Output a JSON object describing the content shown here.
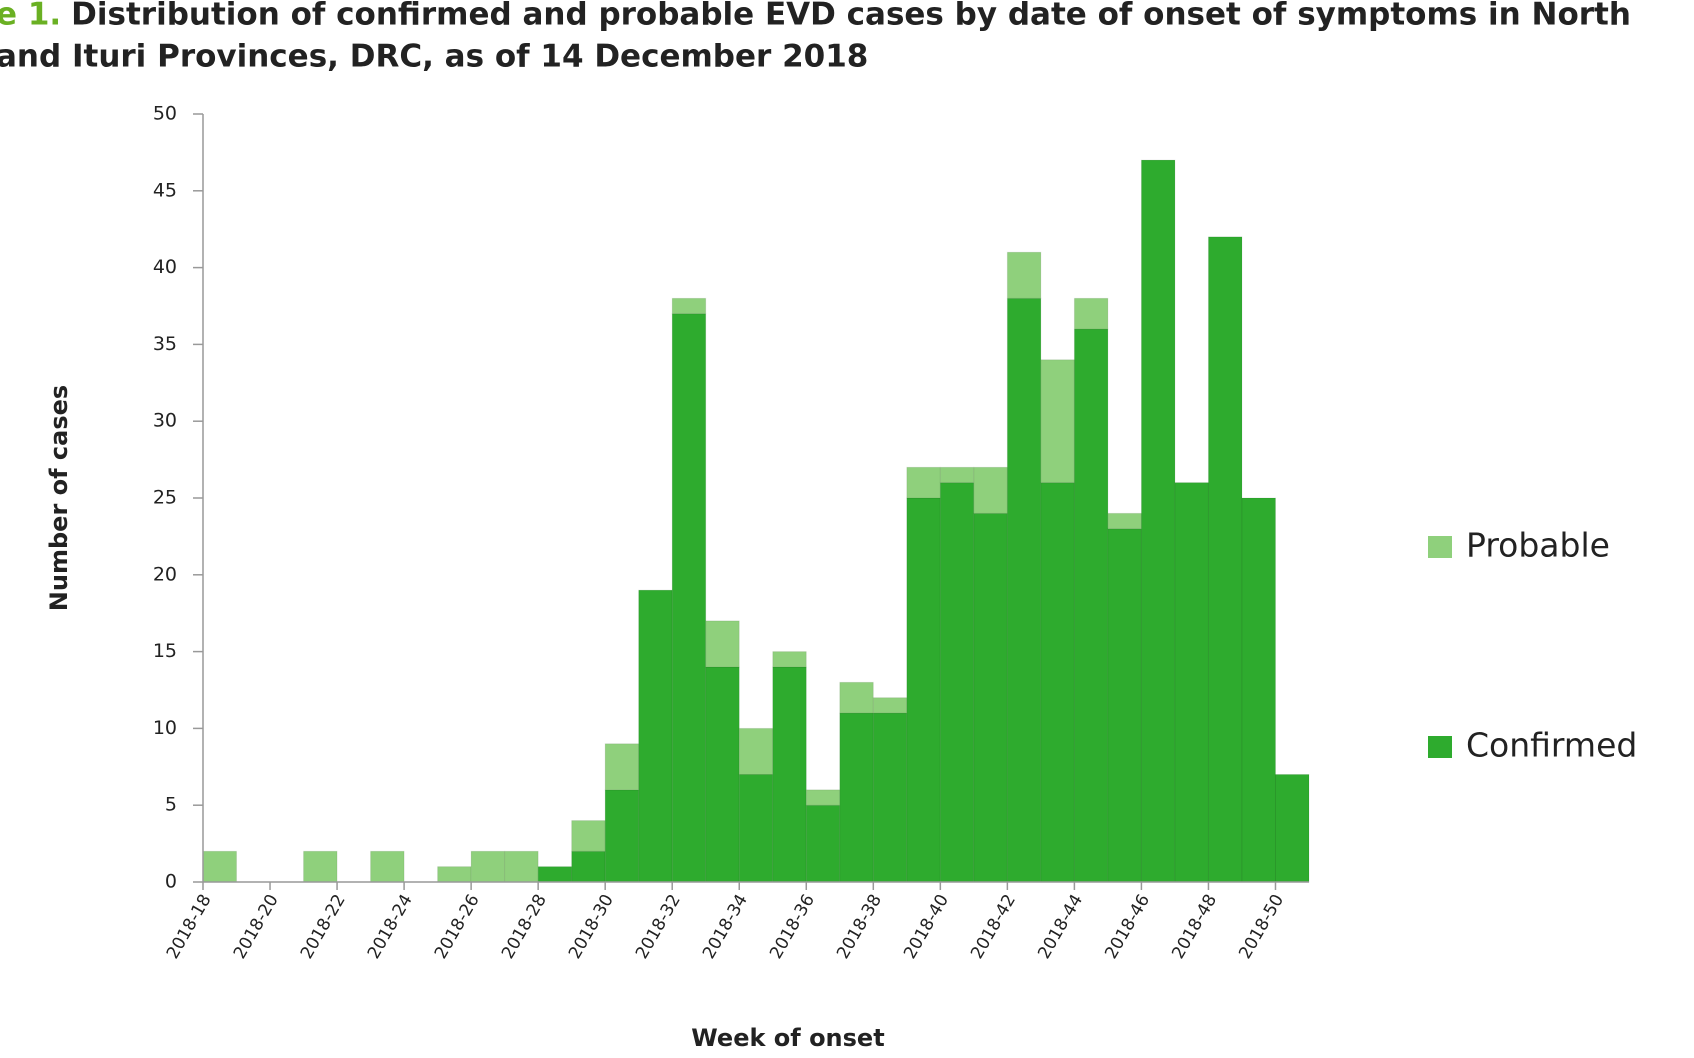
{
  "chart_data": {
    "type": "stacked_bar",
    "title_prefix": "e 1.",
    "title": [
      "Distribution of confirmed and probable EVD cases by date of onset of symptoms in North",
      "and Ituri Provinces, DRC, as of 14 December 2018"
    ],
    "x_label": "Week of onset",
    "y_label": "Number of cases",
    "categories": [
      "2018-18",
      null,
      "2018-20",
      null,
      "2018-22",
      null,
      "2018-24",
      null,
      "2018-26",
      null,
      "2018-28",
      null,
      "2018-30",
      null,
      "2018-32",
      null,
      "2018-34",
      null,
      "2018-36",
      null,
      "2018-38",
      null,
      "2018-40",
      null,
      "2018-42",
      null,
      "2018-44",
      null,
      "2018-46",
      null,
      "2018-48",
      null,
      "2018-50"
    ],
    "series": [
      {
        "name": "Probable",
        "color": "#8fd07c",
        "values": [
          2,
          0,
          0,
          2,
          0,
          2,
          0,
          1,
          2,
          2,
          0,
          2,
          3,
          0,
          1,
          3,
          3,
          1,
          1,
          2,
          1,
          2,
          1,
          3,
          3,
          8,
          2,
          1,
          0,
          0,
          0,
          0,
          0
        ]
      },
      {
        "name": "Confirmed",
        "color": "#2eab2e",
        "values": [
          0,
          0,
          0,
          0,
          0,
          0,
          0,
          0,
          0,
          0,
          1,
          2,
          6,
          19,
          37,
          14,
          7,
          14,
          5,
          11,
          11,
          25,
          26,
          24,
          38,
          26,
          36,
          23,
          47,
          26,
          42,
          25,
          7
        ]
      }
    ],
    "ylim": [
      0,
      50
    ],
    "yticks": [
      0,
      5,
      10,
      15,
      20,
      25,
      30,
      35,
      40,
      45,
      50
    ],
    "grid": false,
    "legend": "right"
  }
}
